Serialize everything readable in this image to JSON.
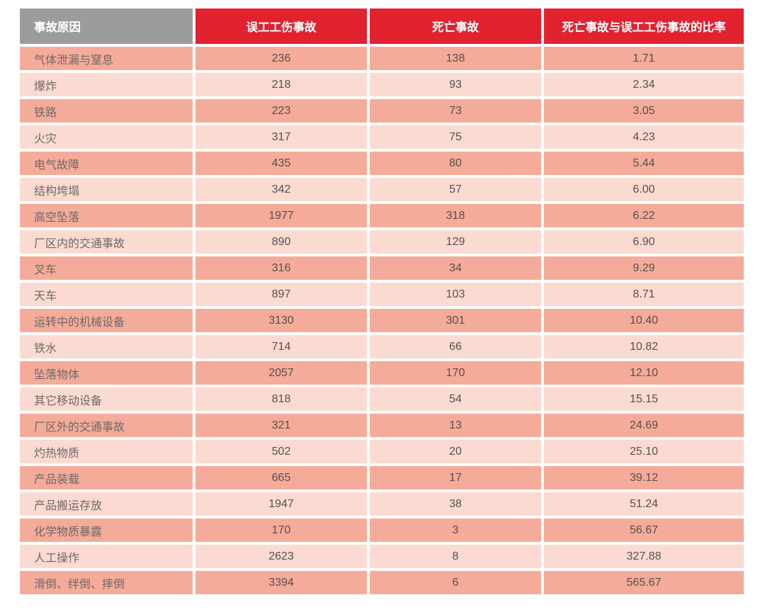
{
  "table": {
    "headers": [
      "事故原因",
      "误工工伤事故",
      "死亡事故",
      "死亡事故与误工工伤事故的比率"
    ],
    "rows": [
      [
        "气体泄漏与窒息",
        "236",
        "138",
        "1.71"
      ],
      [
        "爆炸",
        "218",
        "93",
        "2.34"
      ],
      [
        "铁路",
        "223",
        "73",
        "3.05"
      ],
      [
        "火灾",
        "317",
        "75",
        "4.23"
      ],
      [
        "电气故障",
        "435",
        "80",
        "5.44"
      ],
      [
        "结构垮塌",
        "342",
        "57",
        "6.00"
      ],
      [
        "高空坠落",
        "1977",
        "318",
        "6.22"
      ],
      [
        "厂区内的交通事故",
        "890",
        "129",
        "6.90"
      ],
      [
        "叉车",
        "316",
        "34",
        "9.29"
      ],
      [
        "天车",
        "897",
        "103",
        "8.71"
      ],
      [
        "运转中的机械设备",
        "3130",
        "301",
        "10.40"
      ],
      [
        "铁水",
        "714",
        "66",
        "10.82"
      ],
      [
        "坠落物体",
        "2057",
        "170",
        "12.10"
      ],
      [
        "其它移动设备",
        "818",
        "54",
        "15.15"
      ],
      [
        "厂区外的交通事故",
        "321",
        "13",
        "24.69"
      ],
      [
        "灼热物质",
        "502",
        "20",
        "25.10"
      ],
      [
        "产品装载",
        "665",
        "17",
        "39.12"
      ],
      [
        "产品搬运存放",
        "1947",
        "38",
        "51.24"
      ],
      [
        "化学物质暴露",
        "170",
        "3",
        "56.67"
      ],
      [
        "人工操作",
        "2623",
        "8",
        "327.88"
      ],
      [
        "滑倒、绊倒、摔倒",
        "3394",
        "6",
        "565.67"
      ]
    ]
  },
  "colors": {
    "header_gray": "#9c9c9c",
    "header_red": "#e32230",
    "row_dark_pink": "#f5ab99",
    "row_light_pink": "#fbdbd1",
    "header_text": "#ffffff",
    "body_text": "#564f50"
  },
  "chart_data": {
    "type": "table",
    "title": "",
    "columns": [
      "事故原因",
      "误工工伤事故",
      "死亡事故",
      "死亡事故与误工工伤事故的比率"
    ],
    "rows": [
      {
        "cause": "气体泄漏与窒息",
        "lost_time_injuries": 236,
        "fatal_accidents": 138,
        "ratio": 1.71
      },
      {
        "cause": "爆炸",
        "lost_time_injuries": 218,
        "fatal_accidents": 93,
        "ratio": 2.34
      },
      {
        "cause": "铁路",
        "lost_time_injuries": 223,
        "fatal_accidents": 73,
        "ratio": 3.05
      },
      {
        "cause": "火灾",
        "lost_time_injuries": 317,
        "fatal_accidents": 75,
        "ratio": 4.23
      },
      {
        "cause": "电气故障",
        "lost_time_injuries": 435,
        "fatal_accidents": 80,
        "ratio": 5.44
      },
      {
        "cause": "结构垮塌",
        "lost_time_injuries": 342,
        "fatal_accidents": 57,
        "ratio": 6.0
      },
      {
        "cause": "高空坠落",
        "lost_time_injuries": 1977,
        "fatal_accidents": 318,
        "ratio": 6.22
      },
      {
        "cause": "厂区内的交通事故",
        "lost_time_injuries": 890,
        "fatal_accidents": 129,
        "ratio": 6.9
      },
      {
        "cause": "叉车",
        "lost_time_injuries": 316,
        "fatal_accidents": 34,
        "ratio": 9.29
      },
      {
        "cause": "天车",
        "lost_time_injuries": 897,
        "fatal_accidents": 103,
        "ratio": 8.71
      },
      {
        "cause": "运转中的机械设备",
        "lost_time_injuries": 3130,
        "fatal_accidents": 301,
        "ratio": 10.4
      },
      {
        "cause": "铁水",
        "lost_time_injuries": 714,
        "fatal_accidents": 66,
        "ratio": 10.82
      },
      {
        "cause": "坠落物体",
        "lost_time_injuries": 2057,
        "fatal_accidents": 170,
        "ratio": 12.1
      },
      {
        "cause": "其它移动设备",
        "lost_time_injuries": 818,
        "fatal_accidents": 54,
        "ratio": 15.15
      },
      {
        "cause": "厂区外的交通事故",
        "lost_time_injuries": 321,
        "fatal_accidents": 13,
        "ratio": 24.69
      },
      {
        "cause": "灼热物质",
        "lost_time_injuries": 502,
        "fatal_accidents": 20,
        "ratio": 25.1
      },
      {
        "cause": "产品装载",
        "lost_time_injuries": 665,
        "fatal_accidents": 17,
        "ratio": 39.12
      },
      {
        "cause": "产品搬运存放",
        "lost_time_injuries": 1947,
        "fatal_accidents": 38,
        "ratio": 51.24
      },
      {
        "cause": "化学物质暴露",
        "lost_time_injuries": 170,
        "fatal_accidents": 3,
        "ratio": 56.67
      },
      {
        "cause": "人工操作",
        "lost_time_injuries": 2623,
        "fatal_accidents": 8,
        "ratio": 327.88
      },
      {
        "cause": "滑倒、绊倒、摔倒",
        "lost_time_injuries": 3394,
        "fatal_accidents": 6,
        "ratio": 565.67
      }
    ]
  }
}
